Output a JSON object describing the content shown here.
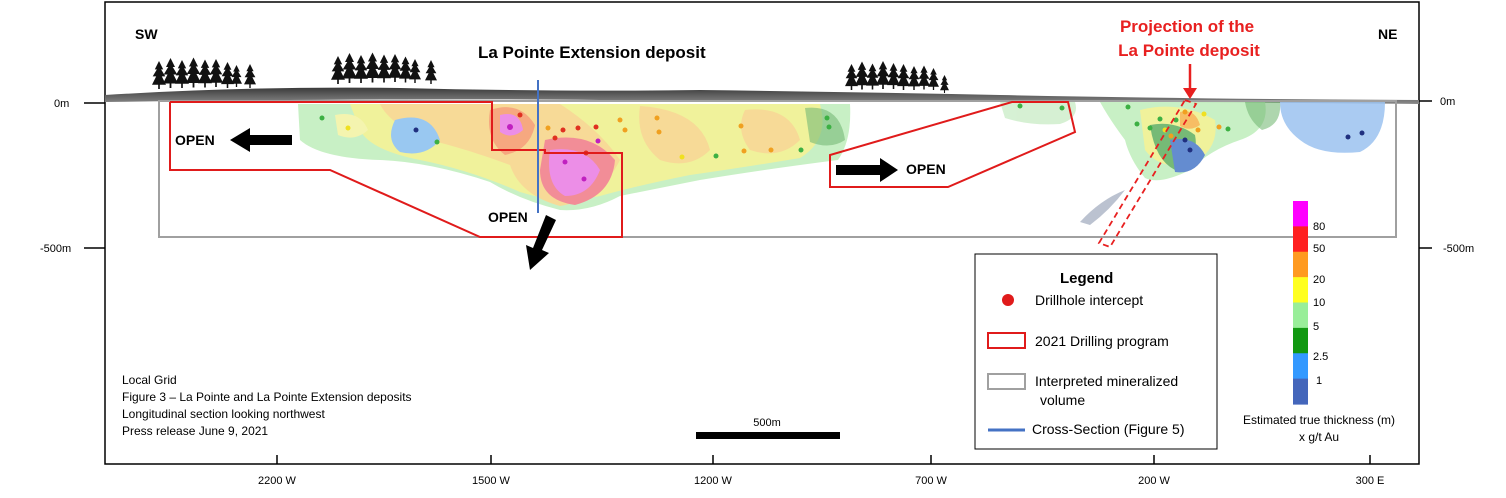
{
  "labels": {
    "sw": "SW",
    "ne": "NE",
    "deposit_title": "La Pointe Extension deposit",
    "projection_line1": "Projection of the",
    "projection_line2": "La Pointe deposit",
    "open_left": "OPEN",
    "open_bottom": "OPEN",
    "open_right": "OPEN",
    "depth_0_left": "0m",
    "depth_500_left": "-500m",
    "depth_0_right": "0m",
    "depth_500_right": "-500m",
    "scale_label": "500m"
  },
  "x_ticks": [
    "2200 W",
    "1500 W",
    "1200 W",
    "700 W",
    "200 W",
    "300 E"
  ],
  "legend": {
    "title": "Legend",
    "items": [
      "Drillhole intercept",
      "2021 Drilling program",
      "Interpreted  mineralized",
      "volume",
      "Cross-Section (Figure 5)"
    ]
  },
  "colorbar": {
    "labels": [
      "80",
      "50",
      "20",
      "10",
      "5",
      "2.5",
      "1"
    ],
    "colors": [
      "#ff00ff",
      "#ff2020",
      "#ff9a20",
      "#ffff20",
      "#99ee99",
      "#119911",
      "#3399ff",
      "#4466bb"
    ],
    "caption_line1": "Estimated true thickness (m)",
    "caption_line2": "x g/t Au"
  },
  "caption": [
    "Local Grid",
    "Figure 3 – La Pointe and  La Pointe Extension deposits",
    "Longitudinal section looking northwest",
    "Press release June 9, 2021"
  ],
  "colors": {
    "drilling_red": "#e01b1b",
    "volume_gray": "#a0a0a0",
    "cross_section_blue": "#4472c4",
    "projection_red": "#e82020"
  }
}
